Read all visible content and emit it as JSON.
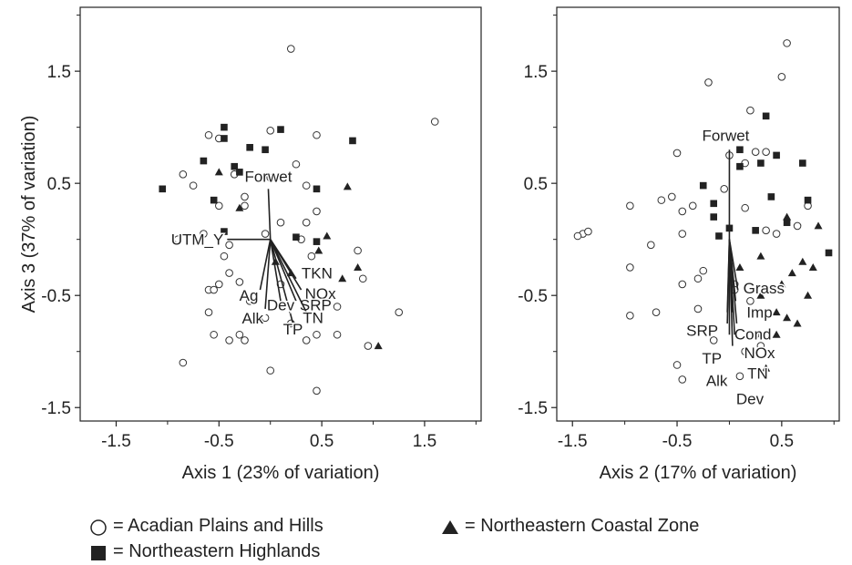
{
  "chart_data": [
    {
      "type": "scatter",
      "title": "",
      "xlabel": "Axis 1 (23% of variation)",
      "ylabel": "Axis 3 (37% of variation)",
      "xlim": [
        -1.85,
        2.05
      ],
      "ylim": [
        -1.62,
        2.07
      ],
      "xticks": [
        "-1.5",
        "-0.5",
        "0.5",
        "1.5"
      ],
      "xtick_values": [
        -1.5,
        -0.5,
        0.5,
        1.5
      ],
      "yticks": [
        "1.5",
        "0.5",
        "-0.5",
        "-1.5"
      ],
      "ytick_values": [
        1.5,
        0.5,
        -0.5,
        -1.5
      ],
      "grid": false,
      "series": [
        {
          "name": "Acadian Plains and Hills",
          "marker": "circle",
          "points": [
            [
              0.2,
              1.7
            ],
            [
              1.6,
              1.05
            ],
            [
              -0.6,
              0.93
            ],
            [
              -0.5,
              0.9
            ],
            [
              0.0,
              0.97
            ],
            [
              0.45,
              0.93
            ],
            [
              0.25,
              0.67
            ],
            [
              -0.85,
              0.58
            ],
            [
              -0.75,
              0.48
            ],
            [
              -0.35,
              0.58
            ],
            [
              0.0,
              0.55
            ],
            [
              0.35,
              0.48
            ],
            [
              -0.25,
              0.38
            ],
            [
              -0.5,
              0.3
            ],
            [
              -0.25,
              0.3
            ],
            [
              0.45,
              0.25
            ],
            [
              0.1,
              0.15
            ],
            [
              -0.05,
              0.05
            ],
            [
              0.35,
              0.15
            ],
            [
              -0.65,
              0.05
            ],
            [
              -0.9,
              0.0
            ],
            [
              0.3,
              0.0
            ],
            [
              -0.4,
              -0.05
            ],
            [
              0.4,
              -0.15
            ],
            [
              -0.45,
              -0.15
            ],
            [
              0.85,
              -0.1
            ],
            [
              -0.4,
              -0.3
            ],
            [
              -0.6,
              -0.45
            ],
            [
              -0.55,
              -0.45
            ],
            [
              -0.3,
              -0.38
            ],
            [
              -0.5,
              -0.4
            ],
            [
              0.9,
              -0.35
            ],
            [
              -0.6,
              -0.65
            ],
            [
              0.65,
              -0.6
            ],
            [
              1.25,
              -0.65
            ],
            [
              -0.55,
              -0.85
            ],
            [
              -0.3,
              -0.85
            ],
            [
              0.45,
              -0.85
            ],
            [
              -0.4,
              -0.9
            ],
            [
              -0.25,
              -0.9
            ],
            [
              0.65,
              -0.85
            ],
            [
              -0.85,
              -1.1
            ],
            [
              0.95,
              -0.95
            ],
            [
              0.35,
              -0.9
            ],
            [
              0.0,
              -1.17
            ],
            [
              0.45,
              -1.35
            ],
            [
              -0.2,
              -0.55
            ],
            [
              0.1,
              -0.4
            ],
            [
              -0.05,
              -0.7
            ],
            [
              0.2,
              -0.75
            ]
          ]
        },
        {
          "name": "Northeastern Highlands",
          "marker": "square",
          "points": [
            [
              -0.45,
              1.0
            ],
            [
              0.1,
              0.98
            ],
            [
              -0.45,
              0.9
            ],
            [
              -0.2,
              0.82
            ],
            [
              -0.05,
              0.8
            ],
            [
              0.8,
              0.88
            ],
            [
              -0.65,
              0.7
            ],
            [
              -0.35,
              0.65
            ],
            [
              -0.3,
              0.6
            ],
            [
              -1.05,
              0.45
            ],
            [
              0.45,
              0.45
            ],
            [
              -0.55,
              0.35
            ],
            [
              -0.45,
              0.07
            ],
            [
              0.25,
              0.02
            ],
            [
              0.45,
              -0.02
            ]
          ]
        },
        {
          "name": "Northeastern Coastal Zone",
          "marker": "triangle",
          "points": [
            [
              -0.5,
              0.6
            ],
            [
              0.75,
              0.47
            ],
            [
              -0.3,
              0.28
            ],
            [
              0.55,
              0.03
            ],
            [
              0.47,
              -0.1
            ],
            [
              0.05,
              -0.2
            ],
            [
              0.85,
              -0.25
            ],
            [
              0.7,
              -0.35
            ],
            [
              1.05,
              -0.95
            ],
            [
              0.2,
              -0.3
            ]
          ]
        }
      ],
      "vectors": [
        {
          "label": "Forwet",
          "x": -0.02,
          "y": 0.45
        },
        {
          "label": "UTM_Y",
          "x": -0.42,
          "y": 0.0
        },
        {
          "label": "TKN",
          "x": 0.25,
          "y": -0.35
        },
        {
          "label": "NOx",
          "x": 0.3,
          "y": -0.45
        },
        {
          "label": "SRP",
          "x": 0.25,
          "y": -0.55
        },
        {
          "label": "TN",
          "x": 0.35,
          "y": -0.65
        },
        {
          "label": "TP",
          "x": 0.22,
          "y": -0.75
        },
        {
          "label": "Dev",
          "x": 0.1,
          "y": -0.55
        },
        {
          "label": "Ag",
          "x": -0.1,
          "y": -0.45
        },
        {
          "label": "Alk",
          "x": -0.05,
          "y": -0.62
        }
      ]
    },
    {
      "type": "scatter",
      "title": "",
      "xlabel": "Axis 2 (17% of variation)",
      "ylabel": "",
      "xlim": [
        -1.65,
        1.05
      ],
      "ylim": [
        -1.62,
        2.07
      ],
      "xticks": [
        "-1.5",
        "-0.5",
        "0.5"
      ],
      "xtick_values": [
        -1.5,
        -0.5,
        0.5
      ],
      "yticks": [
        "1.5",
        "0.5",
        "-0.5",
        "-1.5"
      ],
      "ytick_values": [
        1.5,
        0.5,
        -0.5,
        -1.5
      ],
      "grid": false,
      "series": [
        {
          "name": "Acadian Plains and Hills",
          "marker": "circle",
          "points": [
            [
              0.55,
              1.75
            ],
            [
              0.5,
              1.45
            ],
            [
              -0.2,
              1.4
            ],
            [
              0.2,
              1.15
            ],
            [
              -0.5,
              0.77
            ],
            [
              0.0,
              0.75
            ],
            [
              0.25,
              0.78
            ],
            [
              0.35,
              0.78
            ],
            [
              0.15,
              0.68
            ],
            [
              -0.95,
              0.3
            ],
            [
              -1.4,
              0.05
            ],
            [
              -1.35,
              0.07
            ],
            [
              -1.45,
              0.03
            ],
            [
              -0.75,
              -0.05
            ],
            [
              -0.95,
              -0.25
            ],
            [
              -0.65,
              0.35
            ],
            [
              -0.55,
              0.38
            ],
            [
              -0.45,
              0.25
            ],
            [
              -0.35,
              0.3
            ],
            [
              -0.05,
              0.45
            ],
            [
              0.15,
              0.28
            ],
            [
              0.75,
              0.3
            ],
            [
              0.35,
              0.08
            ],
            [
              0.45,
              0.05
            ],
            [
              0.65,
              0.12
            ],
            [
              -0.45,
              0.05
            ],
            [
              -0.25,
              -0.28
            ],
            [
              -0.45,
              -0.4
            ],
            [
              -0.3,
              -0.35
            ],
            [
              0.05,
              -0.4
            ],
            [
              -0.7,
              -0.65
            ],
            [
              -0.95,
              -0.68
            ],
            [
              -0.3,
              -0.62
            ],
            [
              0.2,
              -0.55
            ],
            [
              0.25,
              -0.85
            ],
            [
              0.3,
              -0.95
            ],
            [
              -0.5,
              -1.12
            ],
            [
              -0.45,
              -1.25
            ],
            [
              0.15,
              -1.0
            ],
            [
              0.1,
              -1.22
            ],
            [
              -0.15,
              -0.9
            ],
            [
              0.05,
              -0.45
            ]
          ]
        },
        {
          "name": "Northeastern Highlands",
          "marker": "square",
          "points": [
            [
              0.35,
              1.1
            ],
            [
              0.1,
              0.8
            ],
            [
              0.1,
              0.65
            ],
            [
              0.3,
              0.68
            ],
            [
              0.45,
              0.75
            ],
            [
              0.7,
              0.68
            ],
            [
              -0.25,
              0.48
            ],
            [
              -0.15,
              0.32
            ],
            [
              0.4,
              0.38
            ],
            [
              -0.15,
              0.2
            ],
            [
              0.75,
              0.35
            ],
            [
              0.55,
              0.15
            ],
            [
              0.0,
              0.1
            ],
            [
              0.25,
              0.08
            ],
            [
              -0.1,
              0.03
            ],
            [
              0.95,
              -0.12
            ]
          ]
        },
        {
          "name": "Northeastern Coastal Zone",
          "marker": "triangle",
          "points": [
            [
              0.55,
              0.2
            ],
            [
              0.85,
              0.12
            ],
            [
              0.1,
              -0.25
            ],
            [
              0.3,
              -0.15
            ],
            [
              0.7,
              -0.2
            ],
            [
              0.8,
              -0.25
            ],
            [
              0.6,
              -0.3
            ],
            [
              0.5,
              -0.4
            ],
            [
              0.75,
              -0.5
            ],
            [
              0.3,
              -0.5
            ],
            [
              0.45,
              -0.65
            ],
            [
              0.55,
              -0.7
            ],
            [
              0.65,
              -0.75
            ],
            [
              0.45,
              -0.85
            ],
            [
              0.35,
              -1.15
            ]
          ]
        }
      ],
      "vectors": [
        {
          "label": "Forwet",
          "x": 0.0,
          "y": 0.8
        },
        {
          "label": "Grass",
          "x": 0.08,
          "y": -0.45
        },
        {
          "label": "Imp",
          "x": 0.06,
          "y": -0.55
        },
        {
          "label": "Cond",
          "x": 0.03,
          "y": -0.65
        },
        {
          "label": "SRP",
          "x": -0.02,
          "y": -0.65
        },
        {
          "label": "NOx",
          "x": 0.07,
          "y": -0.75
        },
        {
          "label": "TP",
          "x": -0.02,
          "y": -0.75
        },
        {
          "label": "TN",
          "x": 0.05,
          "y": -0.85
        },
        {
          "label": "Alk",
          "x": 0.0,
          "y": -0.85
        },
        {
          "label": "Dev",
          "x": 0.03,
          "y": -0.95
        }
      ]
    }
  ],
  "legend": {
    "acadian": "= Acadian Plains and Hills",
    "coastal": "= Northeastern Coastal Zone",
    "highlands": "= Northeastern Highlands"
  }
}
